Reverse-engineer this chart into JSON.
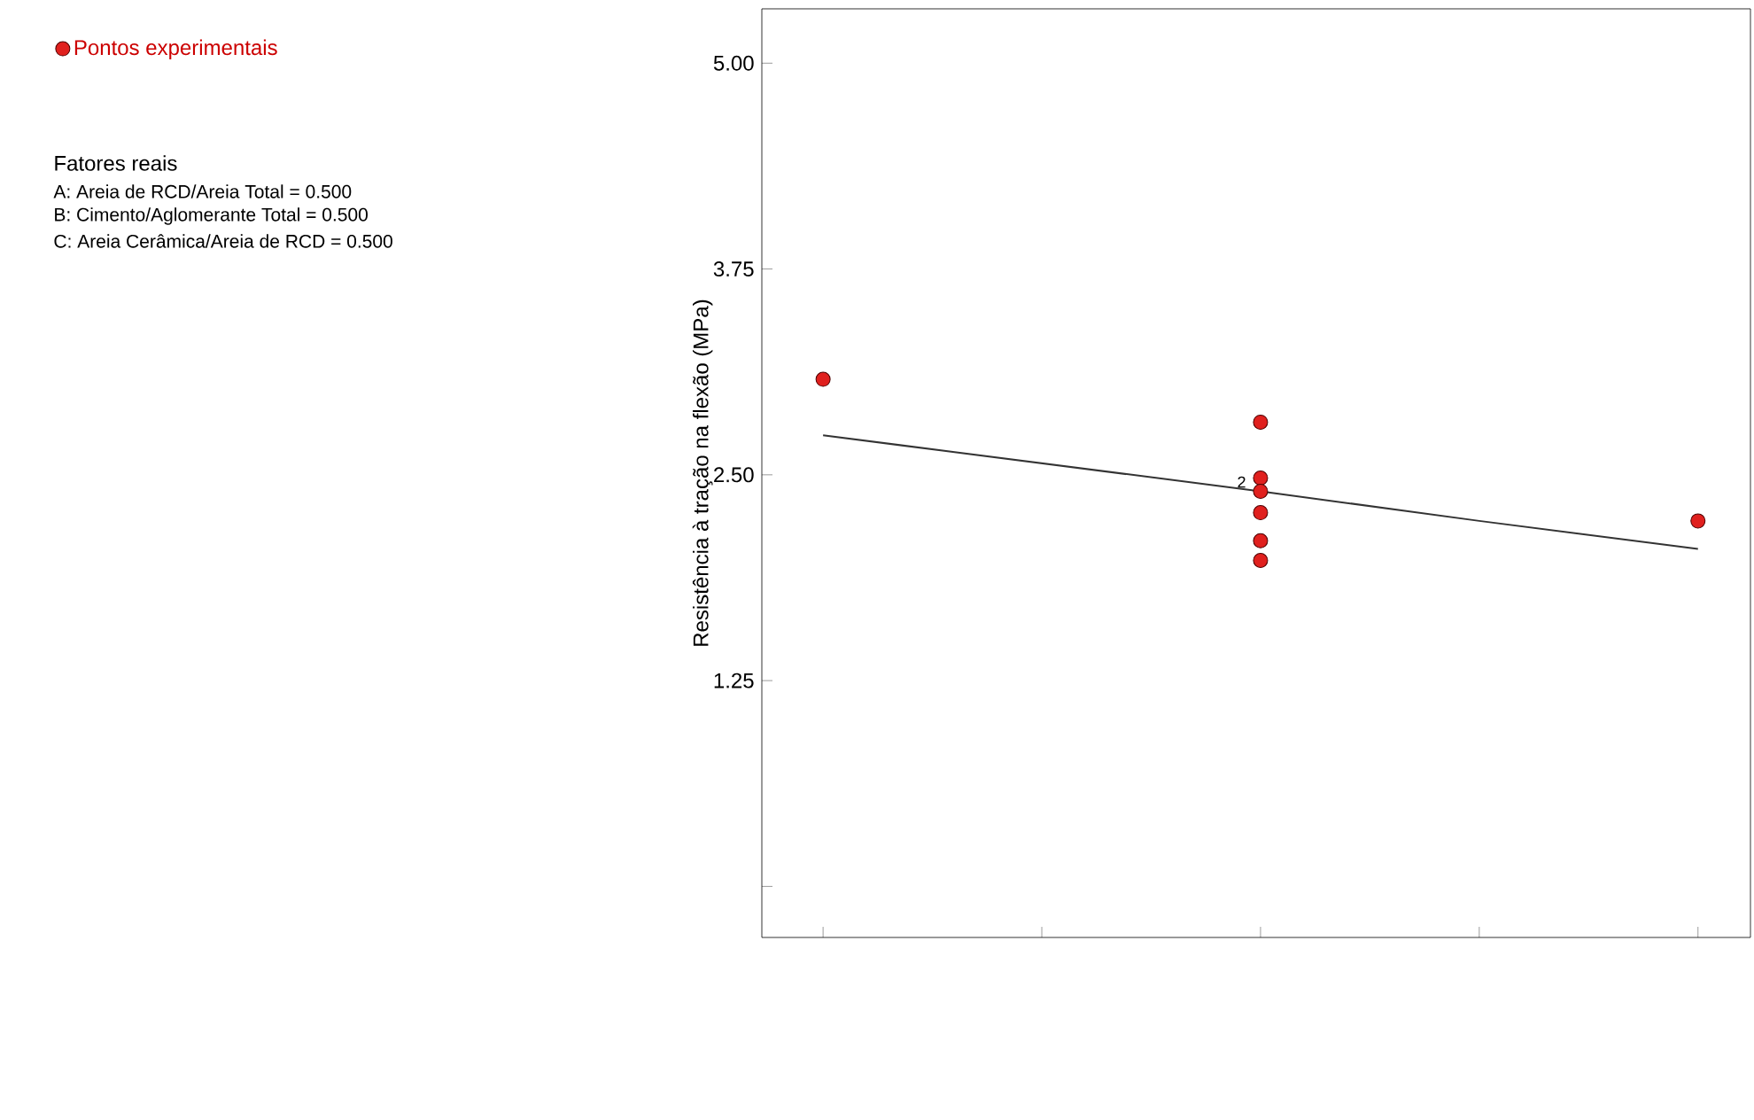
{
  "chart_data": {
    "type": "scatter",
    "ylabel": "Resistência à tração na flexão (MPa)",
    "categories": [
      null,
      null,
      null,
      null,
      null
    ],
    "ylim": [
      -0.31,
      5.33
    ],
    "yticks": [
      {
        "value": 0,
        "label": null
      },
      {
        "value": 1.25,
        "label": "1.25"
      },
      {
        "value": 2.5,
        "label": "2.50"
      },
      {
        "value": 3.75,
        "label": "3.75"
      },
      {
        "value": 5,
        "label": "5.00"
      }
    ],
    "legend": "top left",
    "series": [
      {
        "name": "Pontos experimentais",
        "marker": "circle",
        "color": "#e0201e",
        "values": [
          3.08,
          null,
          2.82,
          null,
          2.22
        ]
      },
      {
        "marker": "circle",
        "color": "#e0201e",
        "values": [
          null,
          null,
          2.48,
          null,
          null
        ]
      },
      {
        "marker": "circle",
        "color": "#e0201e",
        "values": [
          null,
          null,
          2.4,
          null,
          null
        ]
      },
      {
        "marker": "circle",
        "color": "#e0201e",
        "values": [
          null,
          null,
          2.27,
          null,
          null
        ]
      },
      {
        "marker": "circle",
        "color": "#e0201e",
        "values": [
          null,
          null,
          2.1,
          null,
          null
        ]
      },
      {
        "marker": "circle",
        "color": "#e0201e",
        "values": [
          null,
          null,
          1.98,
          null,
          null
        ]
      },
      {
        "type": "line",
        "marker": "none",
        "color": "#333333",
        "values": [
          2.74,
          2.57,
          2.4,
          2.22,
          2.05
        ]
      }
    ],
    "annotations": [
      "Fatores reais",
      "A: Areia de RCD/Areia Total = 0.500",
      "B: Cimento/Aglomerante Total = 0.500",
      "C: Areia Cerâmica/Areia de RCD = 0.500",
      "2"
    ]
  }
}
